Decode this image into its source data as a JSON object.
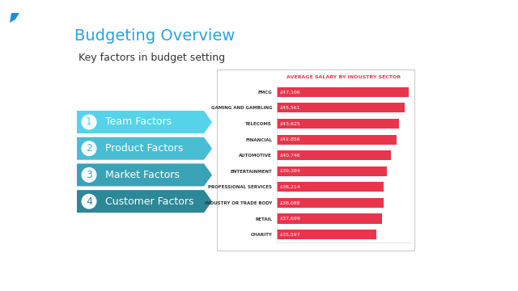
{
  "slide": {
    "title": "Budgeting Overview",
    "subtitle": "Key factors in budget setting",
    "items": [
      {
        "number": "1",
        "label": "Team Factors"
      },
      {
        "number": "2",
        "label": "Product Factors"
      },
      {
        "number": "3",
        "label": "Market Factors"
      },
      {
        "number": "4",
        "label": "Customer Factors"
      }
    ]
  },
  "chart_data": {
    "type": "bar",
    "orientation": "horizontal",
    "title": "AVERAGE SALARY BY INDUSTRY SECTOR",
    "categories": [
      "FMCG",
      "GAMING AND GAMBLING",
      "TELECOMS",
      "FINANCIAL",
      "AUTOMOTIVE",
      "ENTERTAINMENT",
      "PROFESSIONAL SERVICES",
      "INDUSTRY OR TRADE BODY",
      "RETAIL",
      "CHARITY"
    ],
    "values": [
      47106,
      45561,
      43625,
      42856,
      40746,
      39384,
      38214,
      38088,
      37699,
      35597
    ],
    "value_labels": [
      "£47,106",
      "£45,561",
      "£43,625",
      "£42,856",
      "£40,746",
      "£39,384",
      "£38,214",
      "£38,088",
      "£37,699",
      "£35,597"
    ],
    "data_labels": true,
    "color": "#e8354b",
    "xlim": [
      0,
      48000
    ],
    "xticks": [],
    "tick_labels": "y",
    "grid": false
  }
}
